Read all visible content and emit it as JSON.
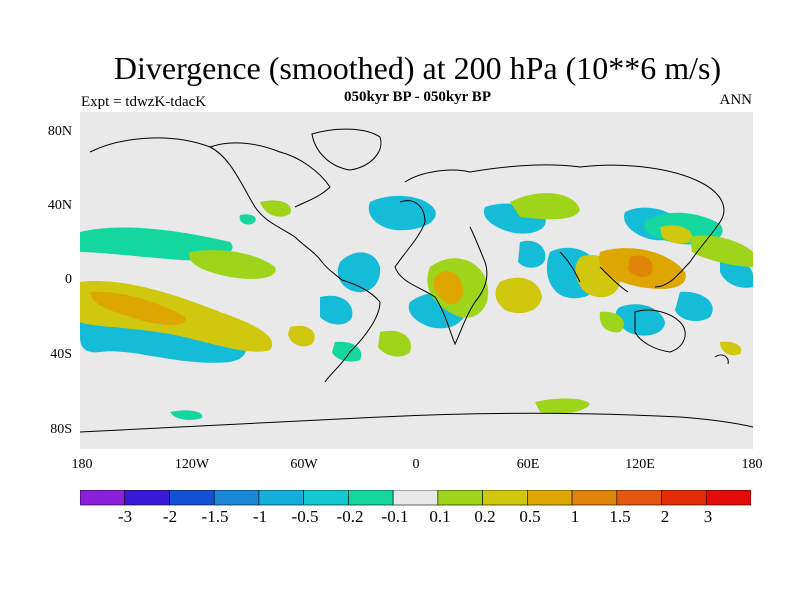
{
  "title": "Divergence (smoothed) at 200 hPa (10**6 m/s)",
  "subtitle": "050kyr BP - 050kyr BP",
  "experiment": "Expt = tdwzK-tdacK",
  "season": "ANN",
  "axes": {
    "lat_ticks": [
      "80N",
      "40N",
      "0",
      "40S",
      "80S"
    ],
    "lon_ticks": [
      "180",
      "120W",
      "60W",
      "0",
      "60E",
      "120E",
      "180"
    ]
  },
  "colorbar": {
    "labels": [
      "-3",
      "-2",
      "-1.5",
      "-1",
      "-0.5",
      "-0.2",
      "-0.1",
      "0.1",
      "0.2",
      "0.5",
      "1",
      "1.5",
      "2",
      "3"
    ],
    "colors": [
      "#8a1ed9",
      "#3a18d9",
      "#1450d4",
      "#1a86d6",
      "#14aedb",
      "#13c9d1",
      "#14d7a0",
      "#e9e9e9",
      "#9ed41a",
      "#cfc80e",
      "#dea600",
      "#e0840a",
      "#e2560e",
      "#e22c08",
      "#e40a0a"
    ]
  },
  "colors": {
    "background_field": "#e9e9e9",
    "coast": "#000000"
  }
}
